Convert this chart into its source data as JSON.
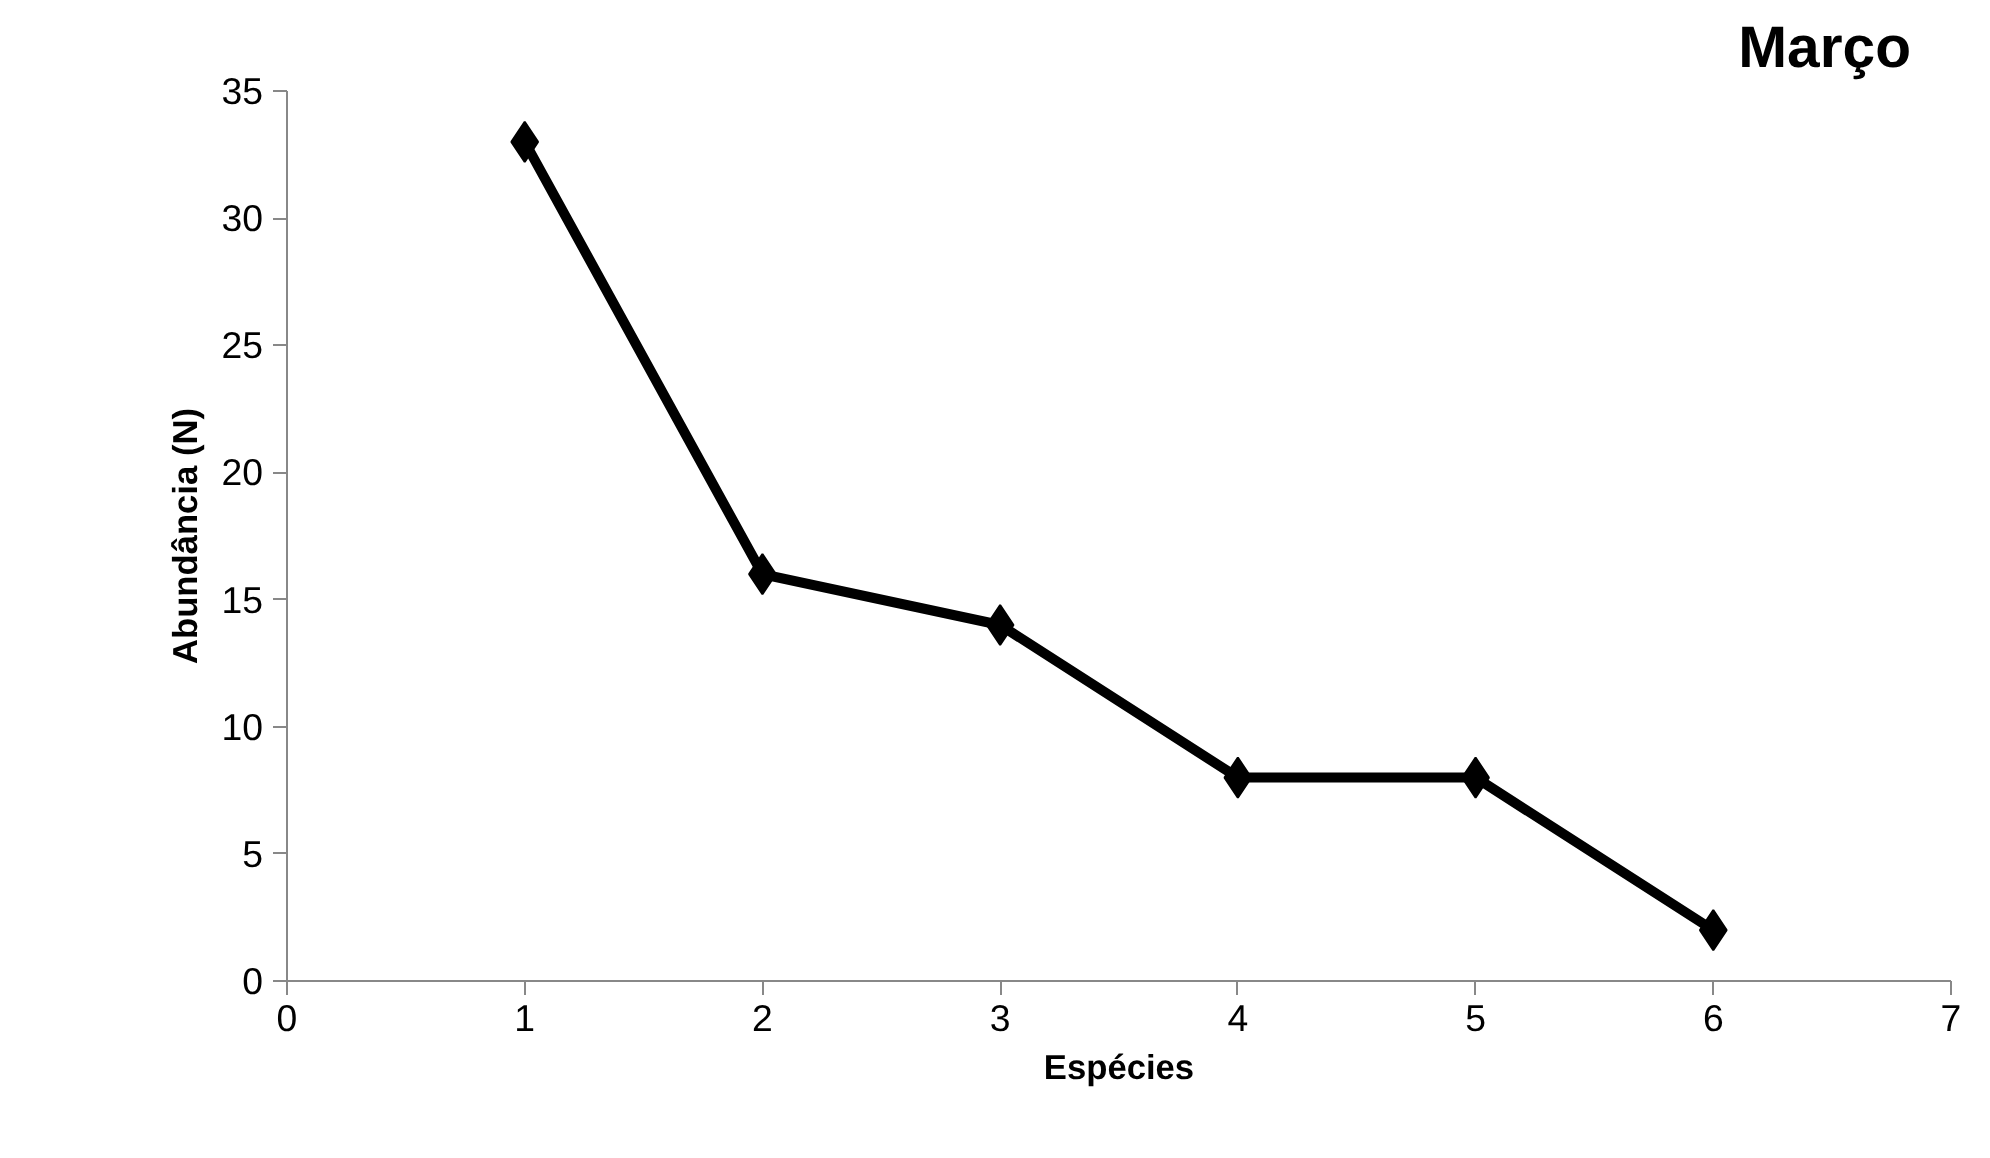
{
  "chart_data": {
    "type": "line",
    "title": "Março",
    "xlabel": "Espécies",
    "ylabel": "Abundância (N)",
    "x": [
      1,
      2,
      3,
      4,
      5,
      6
    ],
    "series": [
      {
        "color": "#000000",
        "values": [
          33,
          16,
          14,
          8,
          8,
          2
        ]
      }
    ],
    "xlim": [
      0,
      7
    ],
    "xticks": [
      0,
      1,
      2,
      3,
      4,
      5,
      6,
      7
    ],
    "ylim": [
      0,
      35
    ],
    "yticks": [
      0,
      5,
      10,
      15,
      20,
      25,
      30,
      35
    ],
    "grid": false,
    "marker": "diamond",
    "line_style": "solid"
  }
}
